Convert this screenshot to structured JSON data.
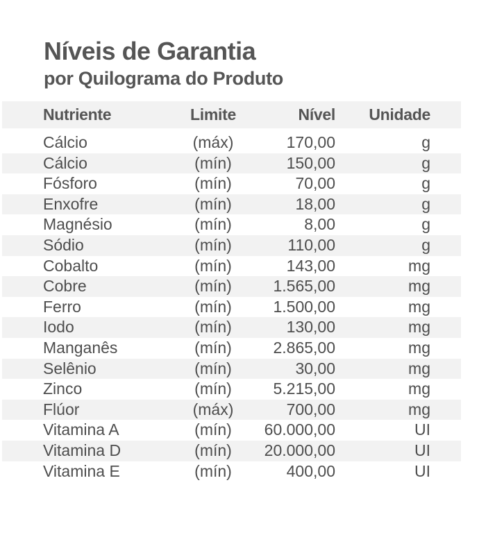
{
  "heading": {
    "title": "Níveis de Garantia",
    "subtitle": "por Quilograma do Produto"
  },
  "table": {
    "columns": [
      "Nutriente",
      "Limite",
      "Nível",
      "Unidade"
    ],
    "rows": [
      {
        "nutrient": "Cálcio",
        "limit": "(máx)",
        "level": "170,00",
        "unit": "g"
      },
      {
        "nutrient": "Cálcio",
        "limit": "(mín)",
        "level": "150,00",
        "unit": "g"
      },
      {
        "nutrient": "Fósforo",
        "limit": "(mín)",
        "level": "70,00",
        "unit": "g"
      },
      {
        "nutrient": "Enxofre",
        "limit": "(mín)",
        "level": "18,00",
        "unit": "g"
      },
      {
        "nutrient": "Magnésio",
        "limit": "(mín)",
        "level": "8,00",
        "unit": "g"
      },
      {
        "nutrient": "Sódio",
        "limit": "(mín)",
        "level": "110,00",
        "unit": "g"
      },
      {
        "nutrient": "Cobalto",
        "limit": "(mín)",
        "level": "143,00",
        "unit": "mg"
      },
      {
        "nutrient": "Cobre",
        "limit": "(mín)",
        "level": "1.565,00",
        "unit": "mg"
      },
      {
        "nutrient": "Ferro",
        "limit": "(mín)",
        "level": "1.500,00",
        "unit": "mg"
      },
      {
        "nutrient": "Iodo",
        "limit": "(mín)",
        "level": "130,00",
        "unit": "mg"
      },
      {
        "nutrient": "Manganês",
        "limit": "(mín)",
        "level": "2.865,00",
        "unit": "mg"
      },
      {
        "nutrient": "Selênio",
        "limit": "(mín)",
        "level": "30,00",
        "unit": "mg"
      },
      {
        "nutrient": "Zinco",
        "limit": "(mín)",
        "level": "5.215,00",
        "unit": "mg"
      },
      {
        "nutrient": "Flúor",
        "limit": "(máx)",
        "level": "700,00",
        "unit": "mg"
      },
      {
        "nutrient": "Vitamina A",
        "limit": "(mín)",
        "level": "60.000,00",
        "unit": "UI"
      },
      {
        "nutrient": "Vitamina D",
        "limit": "(mín)",
        "level": "20.000,00",
        "unit": "UI"
      },
      {
        "nutrient": "Vitamina E",
        "limit": "(mín)",
        "level": "400,00",
        "unit": "UI"
      }
    ]
  },
  "colors": {
    "text": "#4d4d4d",
    "row_shade": "#f2f2f2",
    "background": "#ffffff"
  }
}
